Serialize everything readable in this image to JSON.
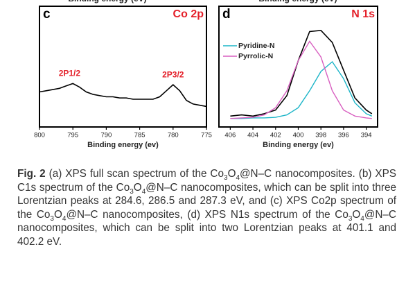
{
  "cropped_labels": [
    "Binding energy (eV)",
    "Binding energy (eV)"
  ],
  "chart_data": [
    {
      "type": "line",
      "panel": "c",
      "title": "Co 2p",
      "xlabel": "Binding energy (ev)",
      "annotations": [
        {
          "text": "2P1/2",
          "x": 795.5,
          "y": 44
        },
        {
          "text": "2P3/2",
          "x": 780,
          "y": 43
        }
      ],
      "x": [
        800,
        799,
        798,
        797,
        796,
        795,
        794,
        793,
        792,
        791,
        790,
        789,
        788,
        787,
        786,
        785,
        784,
        783,
        782,
        781,
        780,
        779,
        778,
        777,
        776,
        775
      ],
      "series": [
        {
          "color": "#000000",
          "values": [
            29,
            30,
            31,
            32,
            34,
            36,
            33,
            29,
            27,
            26,
            25,
            25,
            24,
            24,
            23,
            23,
            23,
            23,
            25,
            30,
            35,
            30,
            22,
            19,
            18,
            17
          ]
        }
      ],
      "xlim": [
        800,
        775
      ],
      "xticks": [
        800,
        795,
        790,
        785,
        780,
        775
      ],
      "ylim": [
        0,
        100
      ]
    },
    {
      "type": "line",
      "panel": "d",
      "title": "N 1s",
      "xlabel": "Binding energy (ev)",
      "x": [
        406,
        405,
        404,
        403,
        402,
        401,
        400,
        399,
        398,
        397,
        396,
        395,
        394,
        393.5
      ],
      "series": [
        {
          "color": "#000000",
          "values": [
            9,
            10,
            9,
            11,
            14,
            26,
            55,
            79,
            80,
            70,
            47,
            24,
            14,
            11
          ]
        },
        {
          "name": "Pyridine-N",
          "color": "#1cb5c8",
          "values": [
            7,
            7,
            7.5,
            7.5,
            8,
            10,
            16,
            30,
            46,
            54,
            40,
            20,
            11,
            9
          ]
        },
        {
          "name": "Pyrrolic-N",
          "color": "#d85fc0",
          "values": [
            7,
            7.5,
            8,
            10,
            16,
            30,
            55,
            71,
            58,
            30,
            14,
            9,
            7.5,
            7
          ]
        }
      ],
      "xlim": [
        407,
        393
      ],
      "xticks": [
        406,
        404,
        402,
        400,
        398,
        396,
        394
      ],
      "ylim": [
        0,
        100
      ]
    }
  ],
  "caption": [
    {
      "bold": "Fig. 2"
    },
    {
      "text": " (a) XPS full scan spectrum of the Co"
    },
    {
      "sub": "3"
    },
    {
      "text": "O"
    },
    {
      "sub": "4"
    },
    {
      "text": "@N–C nanocomposites. (b) XPS C1s spectrum of the Co"
    },
    {
      "sub": "3"
    },
    {
      "text": "O"
    },
    {
      "sub": "4"
    },
    {
      "text": "@N–C nanocomposites, which can be split into three Lorentzian peaks at 284.6, 286.5 and 287.3 eV, and (c) XPS Co2p spectrum of the Co"
    },
    {
      "sub": "3"
    },
    {
      "text": "O"
    },
    {
      "sub": "4"
    },
    {
      "text": "@N–C nanocomposites, (d) XPS N1s spectrum of the Co"
    },
    {
      "sub": "3"
    },
    {
      "text": "O"
    },
    {
      "sub": "4"
    },
    {
      "text": "@N–C nanocomposites, which can be split into two Lorentzian peaks at 401.1 and 402.2 eV."
    }
  ]
}
